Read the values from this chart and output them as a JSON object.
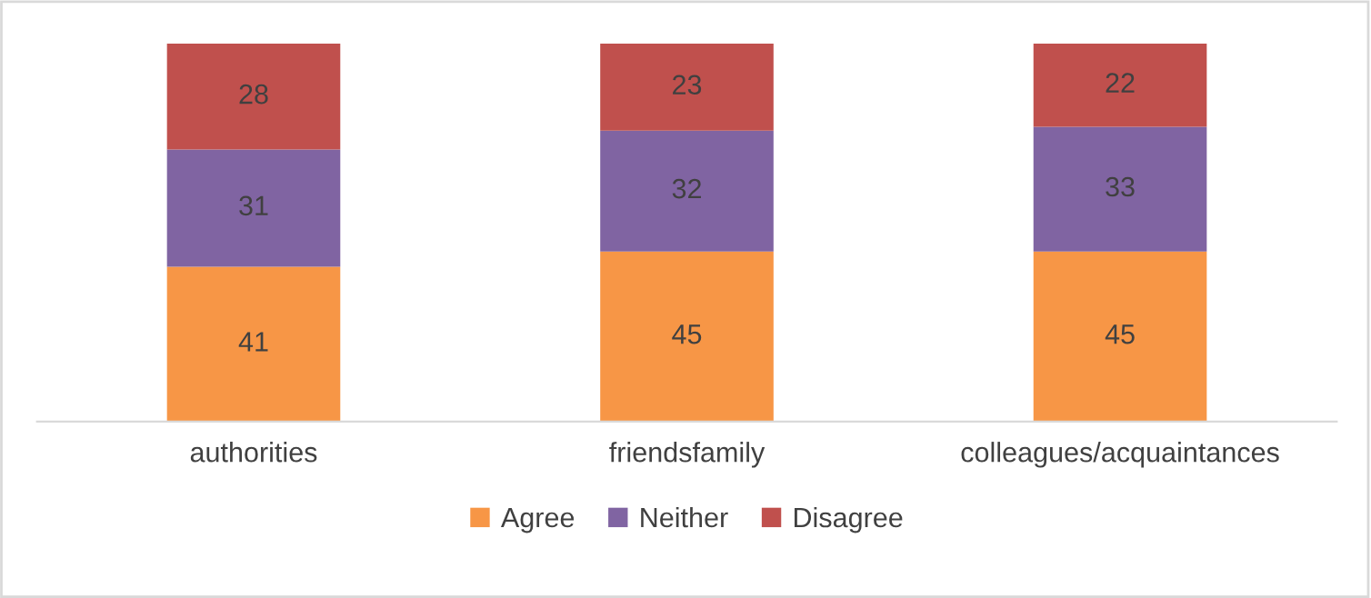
{
  "chart_data": {
    "type": "bar",
    "stacked": true,
    "data_labels": true,
    "legend": "bottom",
    "categories": [
      "authorities",
      "friendsfamily",
      "colleagues/acquaintances"
    ],
    "series": [
      {
        "name": "Agree",
        "color": "#f79646",
        "values": [
          41,
          45,
          45
        ]
      },
      {
        "name": "Neither",
        "color": "#8064a2",
        "values": [
          31,
          32,
          33
        ]
      },
      {
        "name": "Disagree",
        "color": "#c0504d",
        "values": [
          28,
          23,
          22
        ]
      }
    ]
  }
}
